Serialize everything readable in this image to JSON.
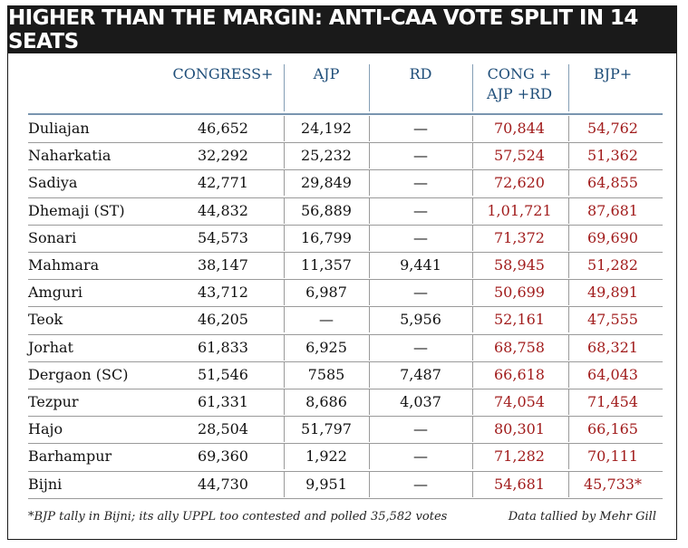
{
  "chart_data": {
    "type": "table",
    "title": "HIGHER THAN THE MARGIN: ANTI-CAA VOTE SPLIT IN 14 SEATS",
    "columns": [
      "CONGRESS+",
      "AJP",
      "RD",
      "CONG + AJP +RD",
      "BJP+"
    ],
    "rows": [
      {
        "seat": "Duliajan",
        "values": [
          "46,652",
          "24,192",
          "—",
          "70,844",
          "54,762"
        ]
      },
      {
        "seat": "Naharkatia",
        "values": [
          "32,292",
          "25,232",
          "—",
          "57,524",
          "51,362"
        ]
      },
      {
        "seat": "Sadiya",
        "values": [
          "42,771",
          "29,849",
          "—",
          "72,620",
          "64,855"
        ]
      },
      {
        "seat": "Dhemaji (ST)",
        "values": [
          "44,832",
          "56,889",
          "—",
          "1,01,721",
          "87,681"
        ]
      },
      {
        "seat": "Sonari",
        "values": [
          "54,573",
          "16,799",
          "—",
          "71,372",
          "69,690"
        ]
      },
      {
        "seat": "Mahmara",
        "values": [
          "38,147",
          "11,357",
          "9,441",
          "58,945",
          "51,282"
        ]
      },
      {
        "seat": "Amguri",
        "values": [
          "43,712",
          "6,987",
          "—",
          "50,699",
          "49,891"
        ]
      },
      {
        "seat": "Teok",
        "values": [
          "46,205",
          "—",
          "5,956",
          "52,161",
          "47,555"
        ]
      },
      {
        "seat": "Jorhat",
        "values": [
          "61,833",
          "6,925",
          "—",
          "68,758",
          "68,321"
        ]
      },
      {
        "seat": "Dergaon (SC)",
        "values": [
          "51,546",
          "7585",
          "7,487",
          "66,618",
          "64,043"
        ]
      },
      {
        "seat": "Tezpur",
        "values": [
          "61,331",
          "8,686",
          "4,037",
          "74,054",
          "71,454"
        ]
      },
      {
        "seat": "Hajo",
        "values": [
          "28,504",
          "51,797",
          "—",
          "80,301",
          "66,165"
        ]
      },
      {
        "seat": "Barhampur",
        "values": [
          "69,360",
          "1,922",
          "—",
          "71,282",
          "70,111"
        ]
      },
      {
        "seat": "Bijni",
        "values": [
          "44,730",
          "9,951",
          "—",
          "54,681",
          "45,733*"
        ]
      }
    ],
    "footnote": "*BJP tally in Bijni; its ally UPPL too contested and polled 35,582 votes",
    "credit": "Data tallied by Mehr Gill",
    "colors": {
      "header": "#1f4e79",
      "highlight": "#a11c1c",
      "banner": "#1a1a1a"
    }
  }
}
